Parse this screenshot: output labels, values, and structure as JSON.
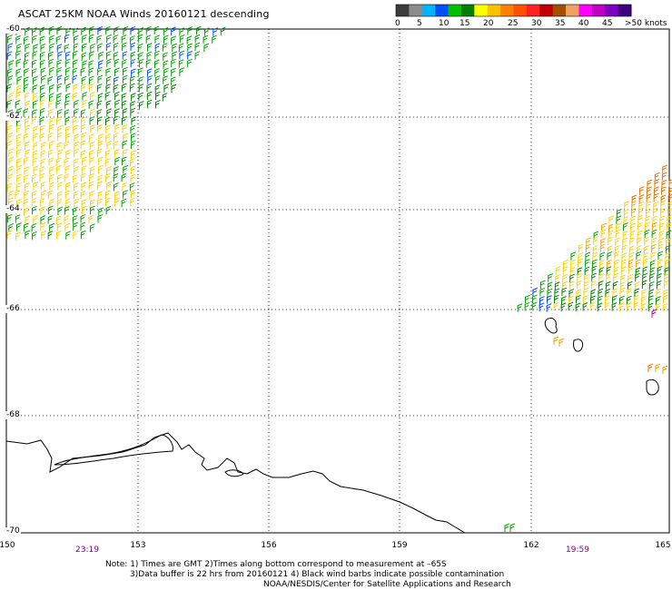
{
  "title": "ASCAT 25KM NOAA Winds 20160121 descending",
  "color_scale": {
    "labels": [
      "0",
      "5",
      "10",
      "15",
      "20",
      "25",
      "30",
      "35",
      "40",
      "45",
      ">50 knots"
    ],
    "colors": [
      "#3c3c3c",
      "#8c8c8c",
      "#00b4ff",
      "#0050ff",
      "#00c000",
      "#008000",
      "#ffff00",
      "#ffc000",
      "#ff8000",
      "#ff5000",
      "#ff2020",
      "#c00000",
      "#a05000",
      "#f0a060",
      "#ff00ff",
      "#c000c0",
      "#8000c0",
      "#400080"
    ]
  },
  "map": {
    "lat_labels": [
      "-60",
      "-62",
      "-64",
      "-66",
      "-68",
      "-70"
    ],
    "lon_labels": [
      "150",
      "153",
      "156",
      "159",
      "162",
      "165"
    ],
    "time_labels": [
      "23:19",
      "19:59"
    ]
  },
  "notes": {
    "line1": "Note: 1) Times are GMT 2)Times along bottom correspond to measurement at –65S",
    "line2": "3)Data buffer is 22 hrs from 20160121 4) Black wind barbs indicate possible contamination",
    "line3": "NOAA/NESDIS/Center for Satellite Applications and Research"
  }
}
